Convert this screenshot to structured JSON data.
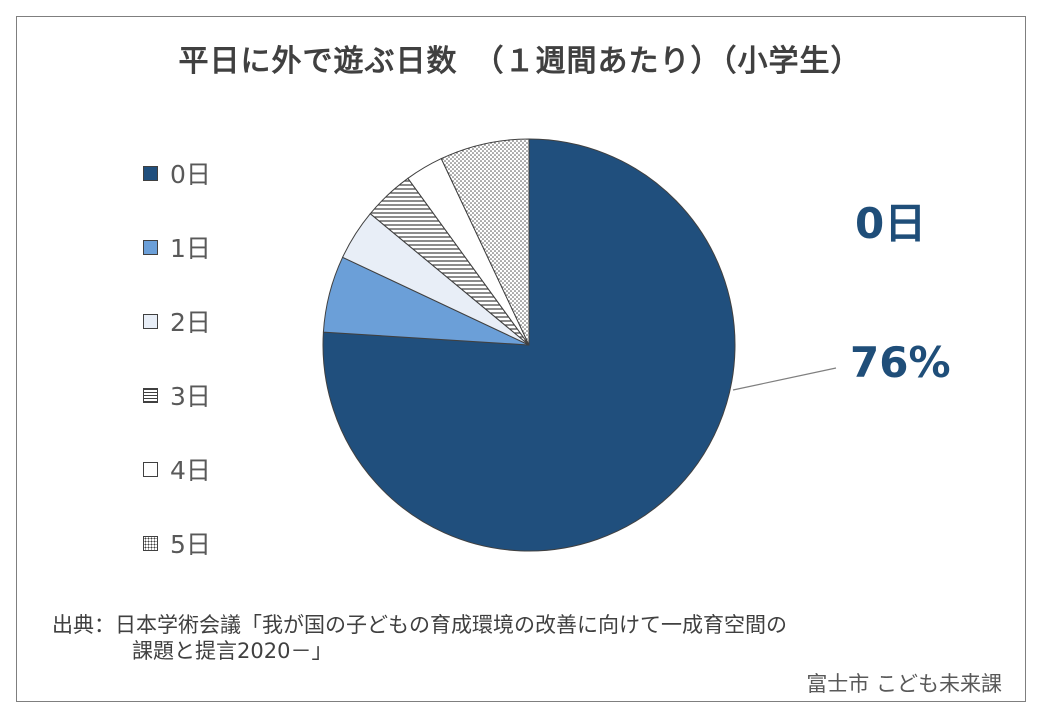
{
  "title": "平日に外で遊ぶ日数　（１週間あたり）（小学生）",
  "chart_data": {
    "type": "pie",
    "categories": [
      "0日",
      "1日",
      "2日",
      "3日",
      "4日",
      "5日"
    ],
    "values": [
      76,
      6,
      4,
      4,
      3,
      7
    ],
    "unit": "%",
    "colors": [
      "#204f7d",
      "#6b9fd8",
      "#ffffff",
      "pattern-horizontal-lines",
      "#ffffff",
      "pattern-dots"
    ],
    "callout": {
      "category": "0日",
      "value_text": "76%"
    },
    "legend_position": "left"
  },
  "legend": {
    "items": [
      "0日",
      "1日",
      "2日",
      "3日",
      "4日",
      "5日"
    ]
  },
  "callout": {
    "category": "0日",
    "value": "76%"
  },
  "source": {
    "line1": "出典：日本学術会議「我が国の子どもの育成環境の改善に向けて一成育空間の",
    "line2": "課題と提言2020－」"
  },
  "credit": "富士市 こども未来課"
}
